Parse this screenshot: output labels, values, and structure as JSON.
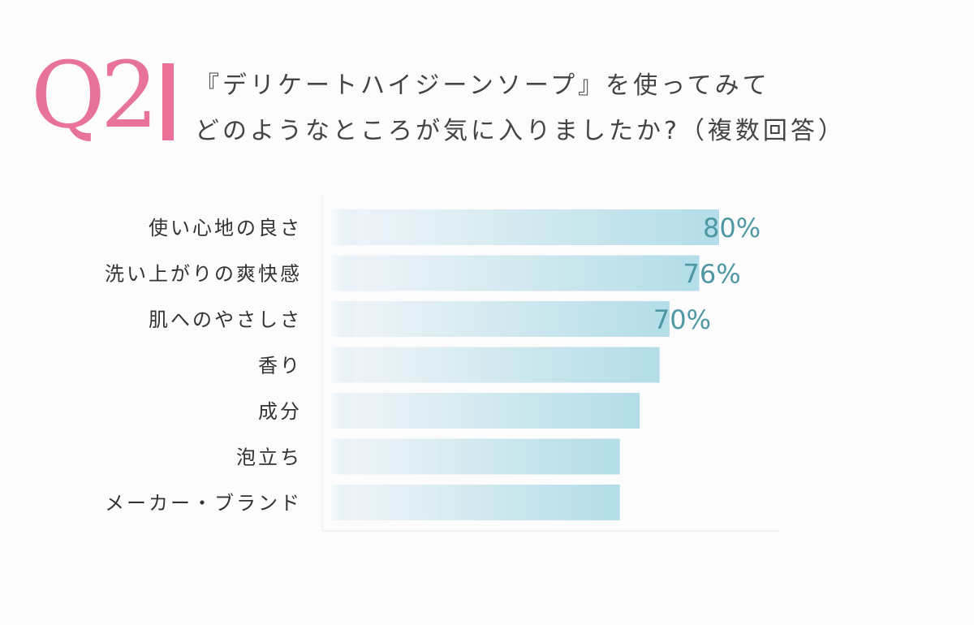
{
  "header": {
    "number": "Q2",
    "line1": "『デリケートハイジーンソープ』を使ってみて",
    "line2": "どのようなところが気に入りましたか?（複数回答）",
    "accent_color": "#e8739a"
  },
  "chart_data": {
    "type": "bar",
    "orientation": "horizontal",
    "categories": [
      "使い心地の良さ",
      "洗い上がりの爽快感",
      "肌へのやさしさ",
      "香り",
      "成分",
      "泡立ち",
      "メーカー・ブランド"
    ],
    "values": [
      80,
      76,
      70,
      68,
      64,
      60,
      60
    ],
    "data_labels": [
      "80%",
      "76%",
      "70%",
      "",
      "",
      "",
      ""
    ],
    "unit": "%",
    "xlim": [
      0,
      90
    ],
    "bar_color": "#b3dde8",
    "label_color": "#4e98a4",
    "grid": false
  }
}
